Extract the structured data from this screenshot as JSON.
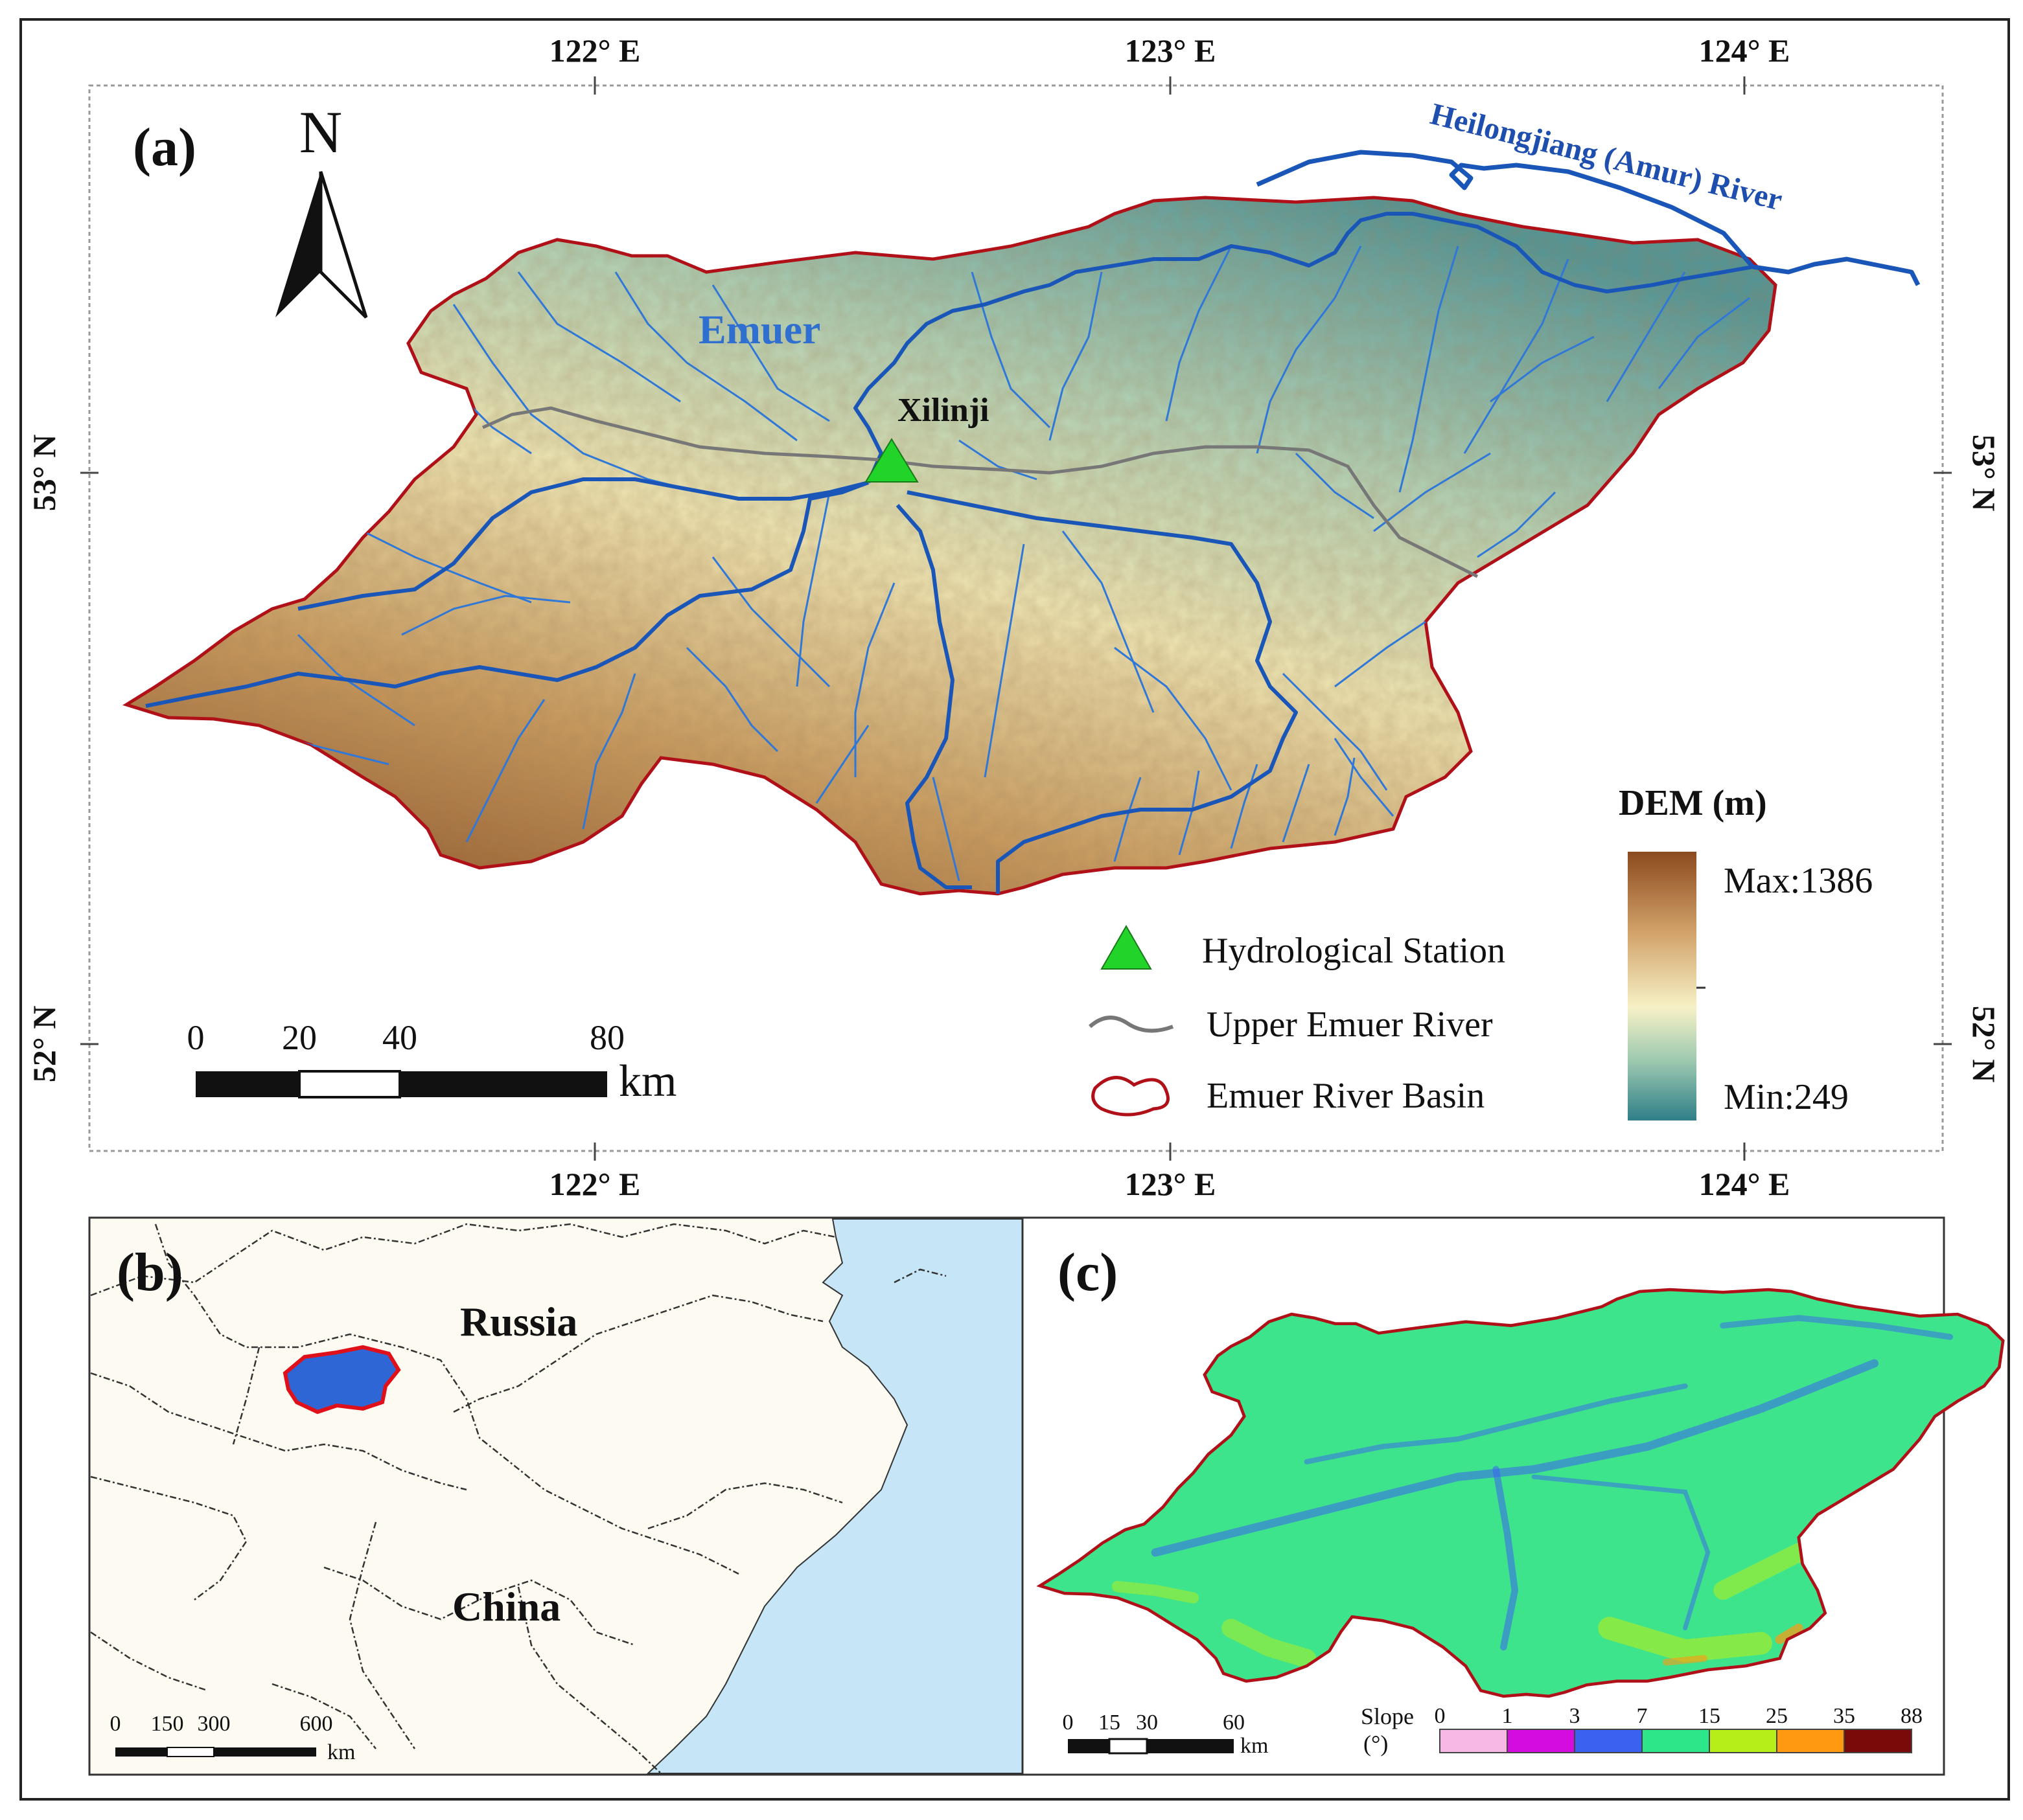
{
  "colors": {
    "basin_border": "#b01018",
    "river_main": "#1a56b8",
    "river_trib": "#2f78d8",
    "upper_river": "#777777",
    "station": "#22d42a",
    "sea": "#c6e6f7",
    "land": "#fdfaf2",
    "dem_high": "#8b4a1e",
    "dem_mid": "#f6f1c6",
    "dem_low": "#2f7f88"
  },
  "panel_a": {
    "label": "(a)",
    "north": "N",
    "lon_ticks": [
      "122° E",
      "123° E",
      "124° E"
    ],
    "lat_ticks": [
      "53° N",
      "52° N"
    ],
    "river_emuer": "Emuer",
    "river_heilong": "Heilongjiang (Amur) River",
    "station_name": "Xilinji",
    "scale": {
      "l0": "0",
      "l20": "20",
      "l40": "40",
      "l80": "80",
      "unit": "km"
    },
    "legend": {
      "station": "Hydrological Station",
      "upper": "Upper Emuer River",
      "basin": "Emuer River Basin"
    },
    "dem": {
      "title": "DEM (m)",
      "max": "Max:1386",
      "min": "Min:249",
      "max_value": 1386,
      "min_value": 249
    }
  },
  "panel_b": {
    "label": "(b)",
    "russia": "Russia",
    "china": "China",
    "scale": {
      "l0": "0",
      "l150": "150",
      "l300": "300",
      "l600": "600",
      "unit": "km"
    }
  },
  "panel_c": {
    "label": "(c)",
    "scale": {
      "l0": "0",
      "l15": "15",
      "l30": "30",
      "l60": "60",
      "unit": "km"
    },
    "slope_title": "Slope",
    "slope_unit": "(°)",
    "slope_breaks": [
      "0",
      "1",
      "3",
      "7",
      "15",
      "25",
      "35",
      "88"
    ],
    "slope_colors": [
      "#f7b8e6",
      "#d40ce0",
      "#3a62f0",
      "#2ee68a",
      "#b6ee1a",
      "#ff9a10",
      "#7a0a0a"
    ]
  }
}
